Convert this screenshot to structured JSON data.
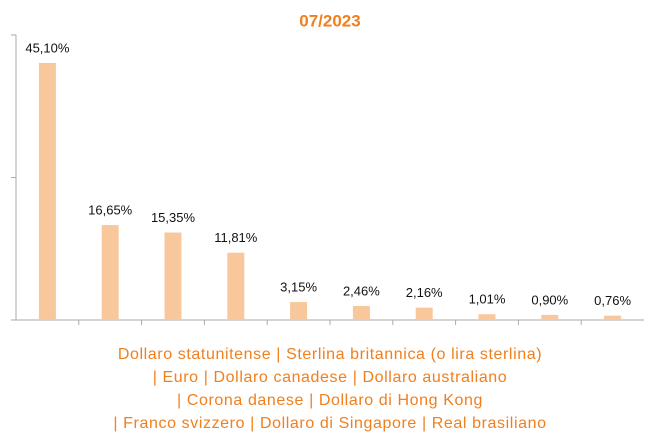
{
  "chart_data": {
    "type": "bar",
    "title": "07/2023",
    "categories": [
      null,
      null,
      null,
      null,
      null,
      null,
      null,
      null,
      null,
      null
    ],
    "values": [
      45.1,
      16.65,
      15.35,
      11.81,
      3.15,
      2.46,
      2.16,
      1.01,
      0.9,
      0.76
    ],
    "value_labels": [
      "45,10%",
      "16,65%",
      "15,35%",
      "11,81%",
      "3,15%",
      "2,46%",
      "2,16%",
      "1,01%",
      "0,90%",
      "0,76%"
    ],
    "color": "#f8c89c",
    "ylim": [
      0,
      50
    ],
    "yticks": [
      0,
      25,
      50
    ],
    "grid": false,
    "caption": [
      "Dollaro statunitense | Sterlina britannica (o lira sterlina)",
      "| Euro | Dollaro canadese | Dollaro australiano",
      "| Corona danese | Dollaro di Hong Kong",
      "| Franco svizzero | Dollaro di Singapore | Real brasiliano"
    ]
  }
}
